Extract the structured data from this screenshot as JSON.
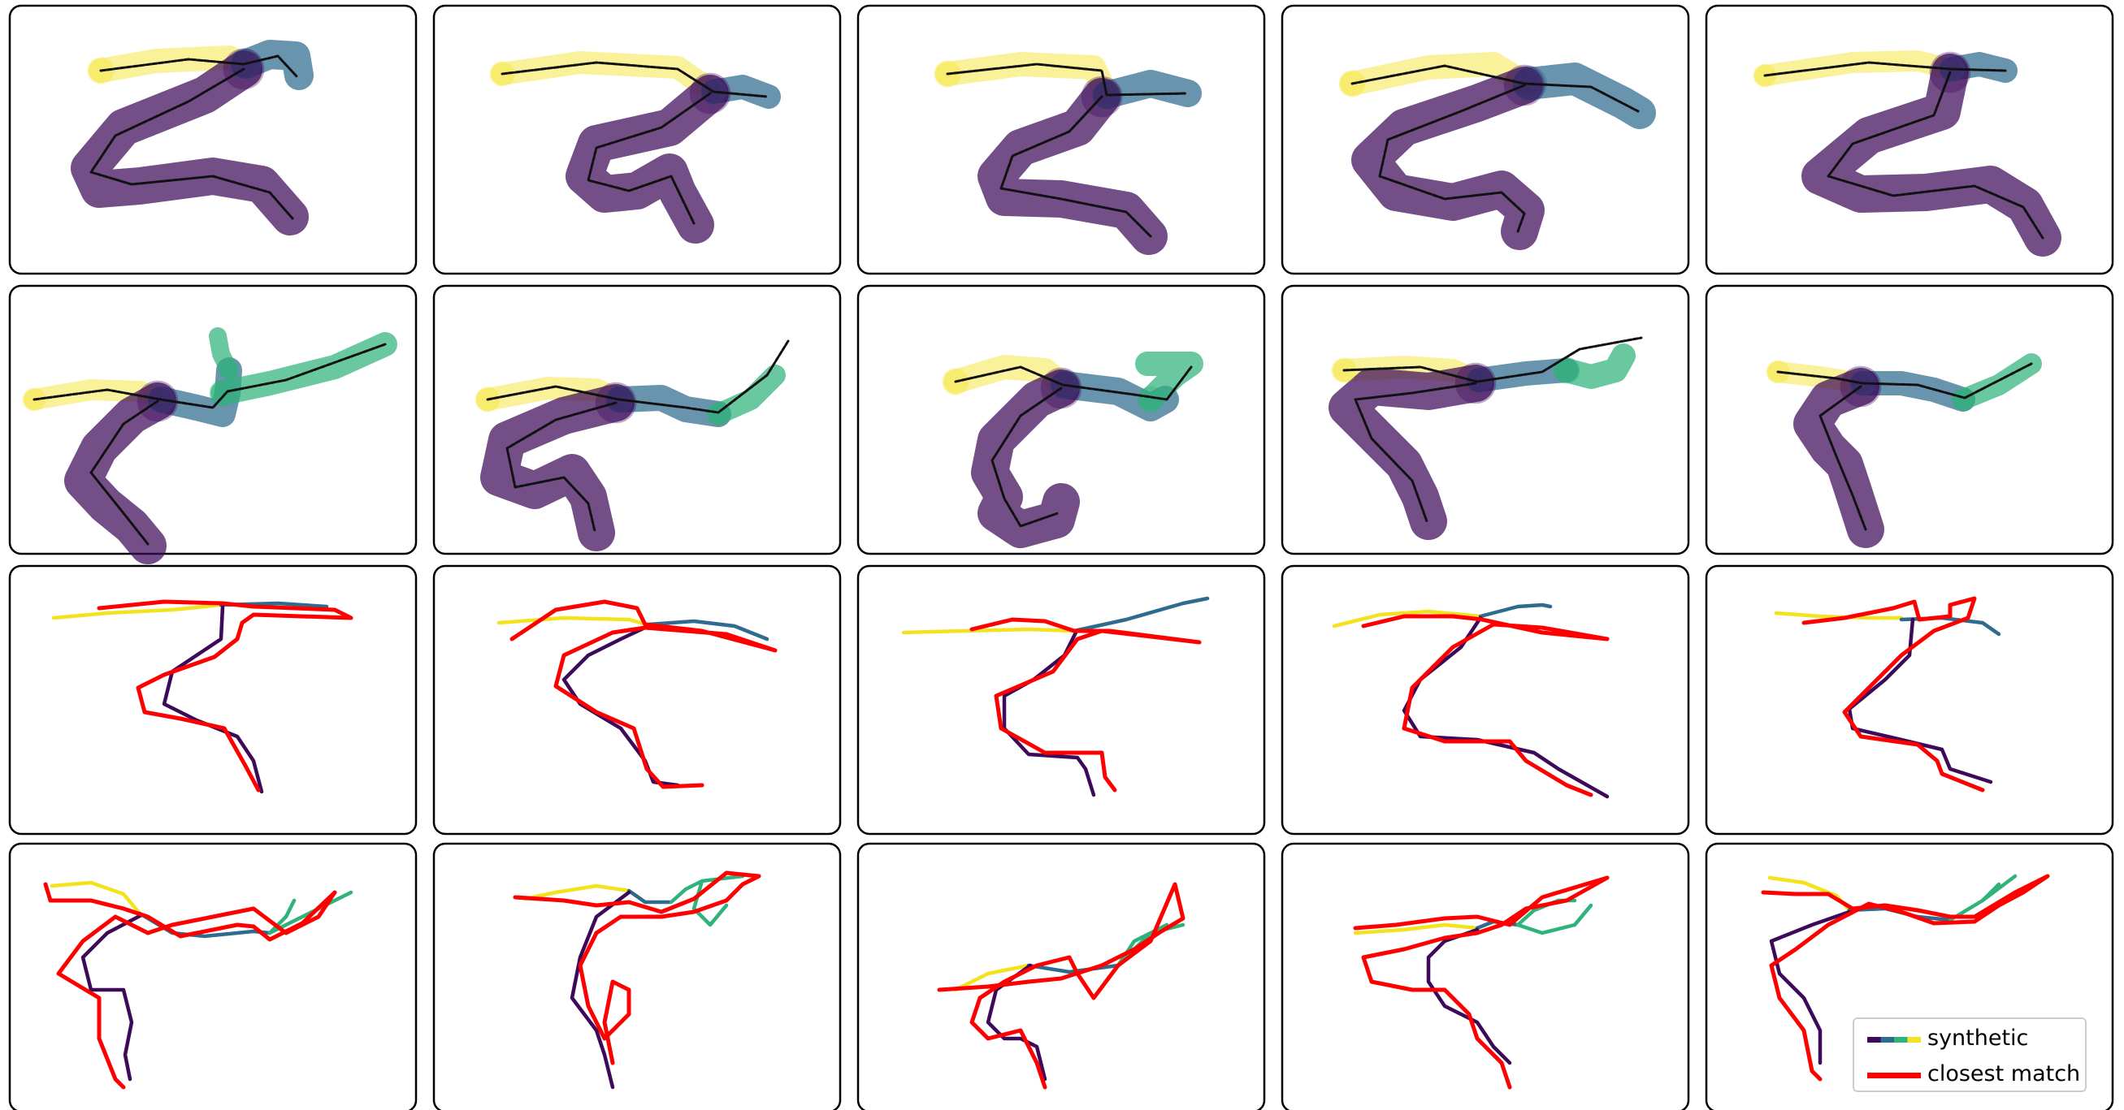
{
  "colors": {
    "segment_1": "#3d0a59",
    "segment_2": "#2e6b8e",
    "segment_3": "#2fb37b",
    "segment_4": "#f3e21e",
    "closest_match": "#ff0000",
    "centerline": "#111111"
  },
  "legend": {
    "position": "lower-right",
    "items": [
      {
        "label": "synthetic",
        "swatch": "viridis-gradient"
      },
      {
        "label": "closest match",
        "swatch": "red-line"
      }
    ]
  },
  "grid": {
    "rows": 4,
    "columns": 5
  }
}
